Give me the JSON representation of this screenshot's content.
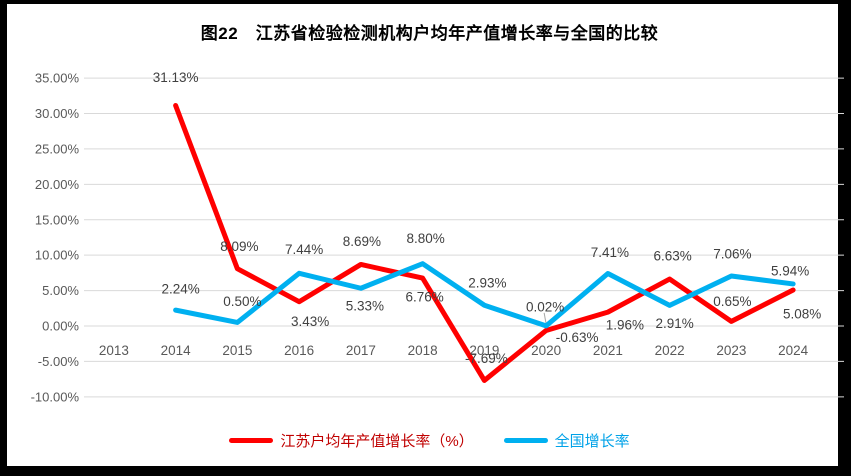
{
  "page": {
    "background": "#000000",
    "card_background": "#FFFFFF"
  },
  "chart_data": {
    "type": "line",
    "title": "图22　江苏省检验检测机构户均年产值增长率与全国的比较",
    "categories": [
      "2013",
      "2014",
      "2015",
      "2016",
      "2017",
      "2018",
      "2019",
      "2020",
      "2021",
      "2022",
      "2023",
      "2024"
    ],
    "y_ticks": [
      "35.00%",
      "30.00%",
      "25.00%",
      "20.00%",
      "15.00%",
      "10.00%",
      "5.00%",
      "0.00%",
      "-5.00%",
      "-10.00%"
    ],
    "ylim": [
      -10,
      35
    ],
    "y_step": 5,
    "grid": true,
    "legend_position": "bottom",
    "styles": {
      "gridline_color": "#D9D9D9",
      "axis_text_color": "#595959",
      "data_label_color": "#404040",
      "leader_line_color": "#A6A6A6",
      "title_color": "#000000"
    },
    "series": [
      {
        "name": "江苏户均年产值增长率（%）",
        "color": "#FF0000",
        "legend_text_color": "#C00000",
        "values": [
          null,
          31.13,
          8.09,
          3.43,
          8.69,
          6.76,
          -7.69,
          -0.63,
          1.96,
          6.63,
          0.65,
          5.08
        ],
        "labels": [
          "",
          "31.13%",
          "8.09%",
          "3.43%",
          "8.69%",
          "6.76%",
          "-7.69%",
          "-0.63%",
          "1.96%",
          "6.63%",
          "0.65%",
          "5.08%"
        ]
      },
      {
        "name": "全国增长率",
        "color": "#00B0F0",
        "legend_text_color": "#00A2E8",
        "values": [
          null,
          2.24,
          0.5,
          7.44,
          5.33,
          8.8,
          2.93,
          0.02,
          7.41,
          2.91,
          7.06,
          5.94
        ],
        "labels": [
          "",
          "2.24%",
          "0.50%",
          "7.44%",
          "5.33%",
          "8.80%",
          "2.93%",
          "0.02%",
          "7.41%",
          "2.91%",
          "7.06%",
          "5.94%"
        ]
      }
    ]
  }
}
